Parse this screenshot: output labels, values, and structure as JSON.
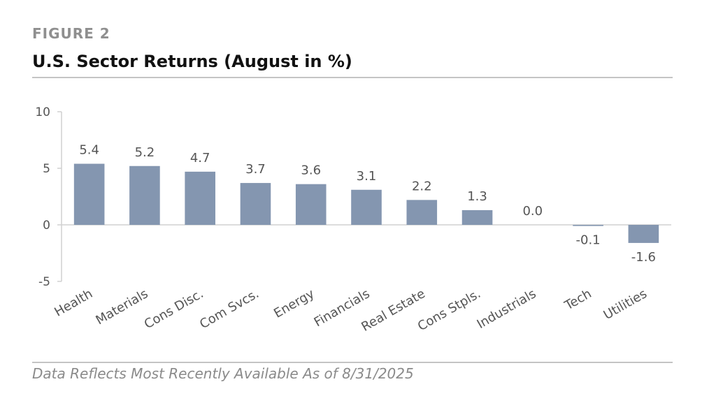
{
  "header": {
    "figure_label": "FIGURE 2",
    "title": "U.S. Sector Returns (August in %)"
  },
  "footer": {
    "note": "Data Reflects Most Recently Available As of 8/31/2025"
  },
  "colors": {
    "bar": "#8496b0",
    "text": "#555555",
    "axis": "#d0d0d0"
  },
  "chart_data": {
    "type": "bar",
    "title": "U.S. Sector Returns (August in %)",
    "categories": [
      "Health",
      "Materials",
      "Cons Disc.",
      "Com Svcs.",
      "Energy",
      "Financials",
      "Real Estate",
      "Cons Stpls.",
      "Industrials",
      "Tech",
      "Utilities"
    ],
    "values": [
      5.4,
      5.2,
      4.7,
      3.7,
      3.6,
      3.1,
      2.2,
      1.3,
      0.0,
      -0.1,
      -1.6
    ],
    "data_labels": [
      "5.4",
      "5.2",
      "4.7",
      "3.7",
      "3.6",
      "3.1",
      "2.2",
      "1.3",
      "0.0",
      "-0.1",
      "-1.6"
    ],
    "ylim": [
      -5,
      10
    ],
    "yticks": [
      -5,
      0,
      5,
      10
    ],
    "ytick_labels": [
      "-5",
      "0",
      "5",
      "10"
    ],
    "xlabel": "",
    "ylabel": "",
    "grid": false,
    "legend": "none"
  }
}
